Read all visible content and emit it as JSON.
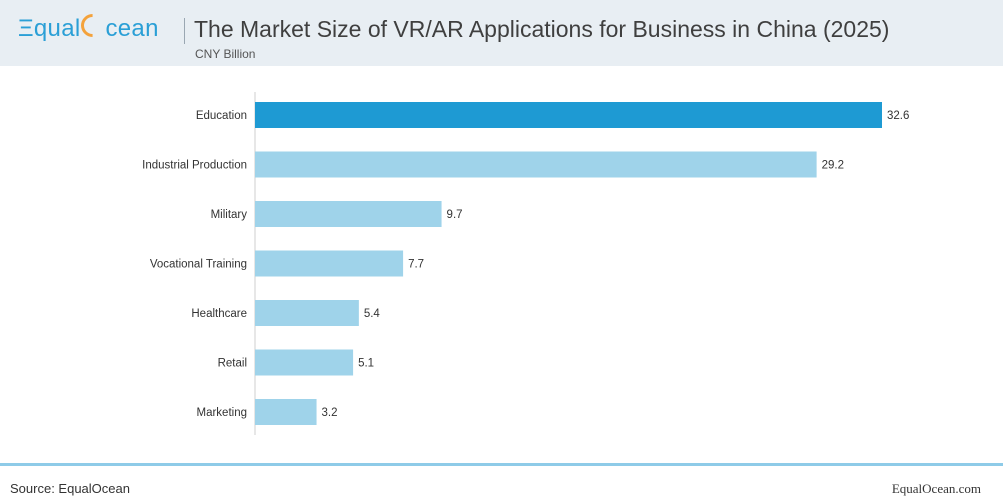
{
  "header": {
    "logo_text_a": "qual",
    "logo_text_b": "cean",
    "title": "The Market Size of VR/AR Applications for Business in China (2025)",
    "subtitle": "CNY Billion"
  },
  "colors": {
    "highlight": "#1e9ad3",
    "bar": "#9fd3ea",
    "logo": "#2a9fd6",
    "logo_accent": "#f4a23b"
  },
  "chart_data": {
    "type": "bar",
    "orientation": "horizontal",
    "categories": [
      "Education",
      "Industrial Production",
      "Military",
      "Vocational Training",
      "Healthcare",
      "Retail",
      "Marketing"
    ],
    "values": [
      32.6,
      29.2,
      9.7,
      7.7,
      5.4,
      5.1,
      3.2
    ],
    "labels": [
      "32.6",
      "29.2",
      "9.7",
      "7.7",
      "5.4",
      "5.1",
      "3.2"
    ],
    "highlight_index": 0,
    "xlim": [
      0,
      32.6
    ],
    "grid": false,
    "legend": "none"
  },
  "footer": {
    "source": "Source: EqualOcean",
    "site": "EqualOcean.com"
  }
}
